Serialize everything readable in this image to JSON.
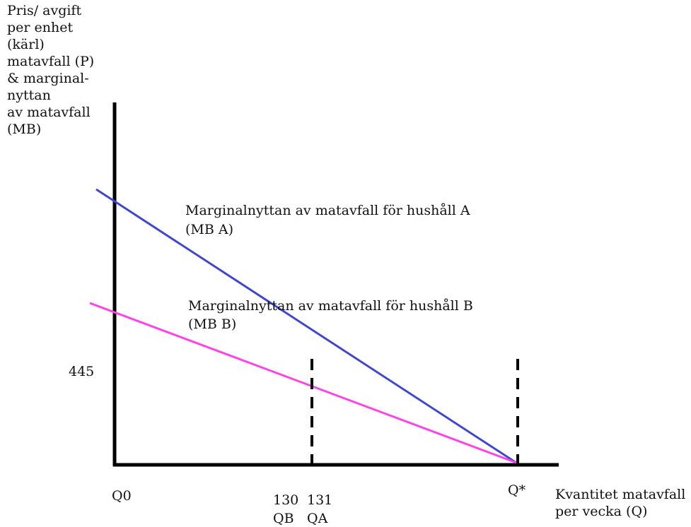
{
  "diagram": {
    "y_axis_label": "Pris/ avgift\nper enhet\n(kärl)\nmatavfall (P)\n& marginal-\nnyttan\nav matavfall\n(MB)",
    "x_axis_label": "Kvantitet matavfall\nper vecka (Q)",
    "curve_a_label_line1": "Marginalnyttan av matavfall för hushåll A",
    "curve_a_label_line2": "(MB A)",
    "curve_b_label_line1": "Marginalnyttan av matavfall för hushåll B",
    "curve_b_label_line2": "(MB B)",
    "y_tick_445": "445",
    "x_tick_q0": "Q0",
    "x_tick_130": "130",
    "x_tick_131": "131",
    "x_tick_qb": "QB",
    "x_tick_qa": "QA",
    "x_tick_qstar": "Q*",
    "colors": {
      "axis": "#000000",
      "mb_a": "#3f48cc",
      "mb_b": "#ff44e6",
      "dashed": "#000000"
    }
  }
}
